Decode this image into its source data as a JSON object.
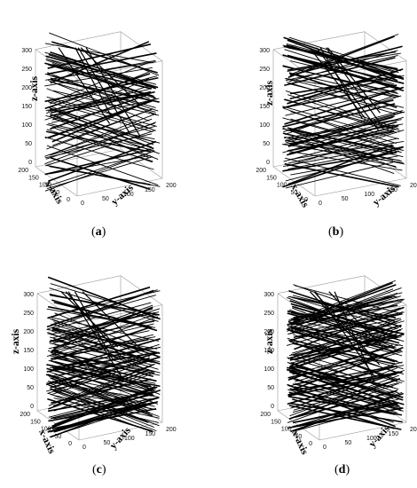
{
  "figure": {
    "panels": [
      {
        "letter": "a",
        "axes": {
          "x": "x-axis",
          "y": "y-axis",
          "z": "z-axis"
        }
      },
      {
        "letter": "b",
        "axes": {
          "x": "x-axis",
          "y": "y-axis",
          "z": "z-axis"
        }
      },
      {
        "letter": "c",
        "axes": {
          "x": "x-axis",
          "y": "y-axis",
          "z": "z-axis"
        }
      },
      {
        "letter": "d",
        "axes": {
          "x": "x-axis",
          "y": "y-axis",
          "z": "z-axis"
        }
      }
    ],
    "ticks": {
      "z": [
        "0",
        "50",
        "100",
        "150",
        "200",
        "250",
        "300"
      ],
      "x": [
        "0",
        "50",
        "100",
        "150",
        "200"
      ],
      "y": [
        "0",
        "50",
        "100",
        "150",
        "200"
      ]
    },
    "colors": {
      "lines": "#000000",
      "box": "#9a9a9a"
    }
  }
}
